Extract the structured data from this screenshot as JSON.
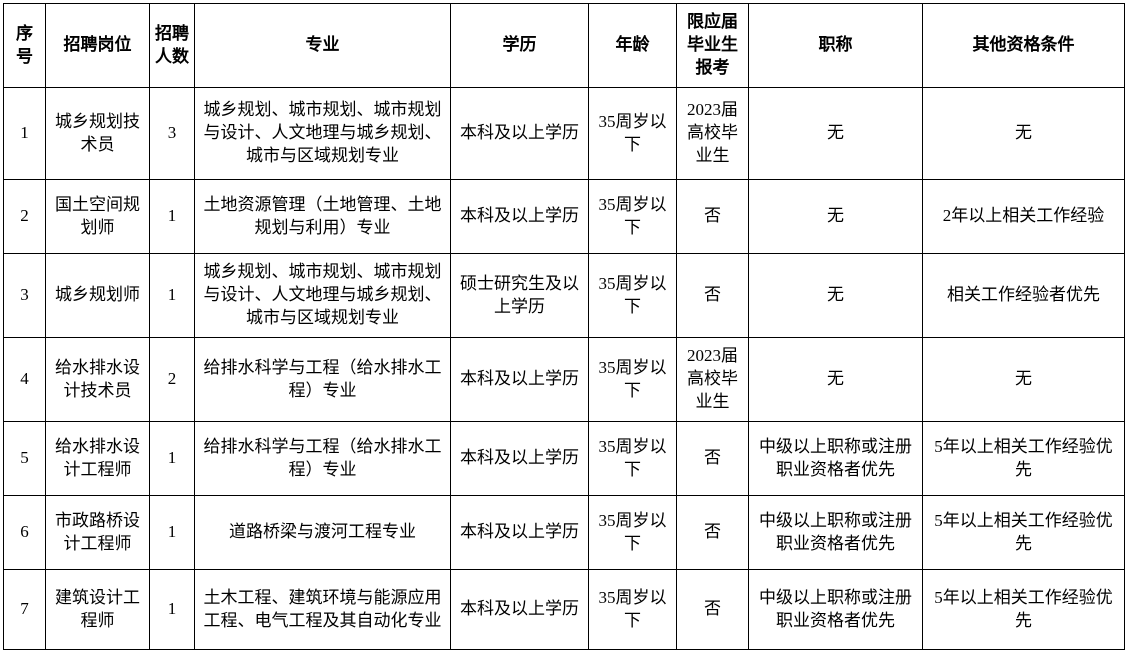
{
  "table": {
    "columns": [
      "序号",
      "招聘岗位",
      "招聘人数",
      "专业",
      "学历",
      "年龄",
      "限应届毕业生报考",
      "职称",
      "其他资格条件"
    ],
    "rows": [
      [
        "1",
        "城乡规划技术员",
        "3",
        "城乡规划、城市规划、城市规划与设计、人文地理与城乡规划、城市与区域规划专业",
        "本科及以上学历",
        "35周岁以下",
        "2023届高校毕业生",
        "无",
        "无"
      ],
      [
        "2",
        "国土空间规划师",
        "1",
        "土地资源管理（土地管理、土地规划与利用）专业",
        "本科及以上学历",
        "35周岁以下",
        "否",
        "无",
        "2年以上相关工作经验"
      ],
      [
        "3",
        "城乡规划师",
        "1",
        "城乡规划、城市规划、城市规划与设计、人文地理与城乡规划、城市与区域规划专业",
        "硕士研究生及以上学历",
        "35周岁以下",
        "否",
        "无",
        "相关工作经验者优先"
      ],
      [
        "4",
        "给水排水设计技术员",
        "2",
        "给排水科学与工程（给水排水工程）专业",
        "本科及以上学历",
        "35周岁以下",
        "2023届高校毕业生",
        "无",
        "无"
      ],
      [
        "5",
        "给水排水设计工程师",
        "1",
        "给排水科学与工程（给水排水工程）专业",
        "本科及以上学历",
        "35周岁以下",
        "否",
        "中级以上职称或注册职业资格者优先",
        "5年以上相关工作经验优先"
      ],
      [
        "6",
        "市政路桥设计工程师",
        "1",
        "道路桥梁与渡河工程专业",
        "本科及以上学历",
        "35周岁以下",
        "否",
        "中级以上职称或注册职业资格者优先",
        "5年以上相关工作经验优先"
      ],
      [
        "7",
        "建筑设计工程师",
        "1",
        "土木工程、建筑环境与能源应用工程、电气工程及其自动化专业",
        "本科及以上学历",
        "35周岁以下",
        "否",
        "中级以上职称或注册职业资格者优先",
        "5年以上相关工作经验优先"
      ]
    ]
  }
}
